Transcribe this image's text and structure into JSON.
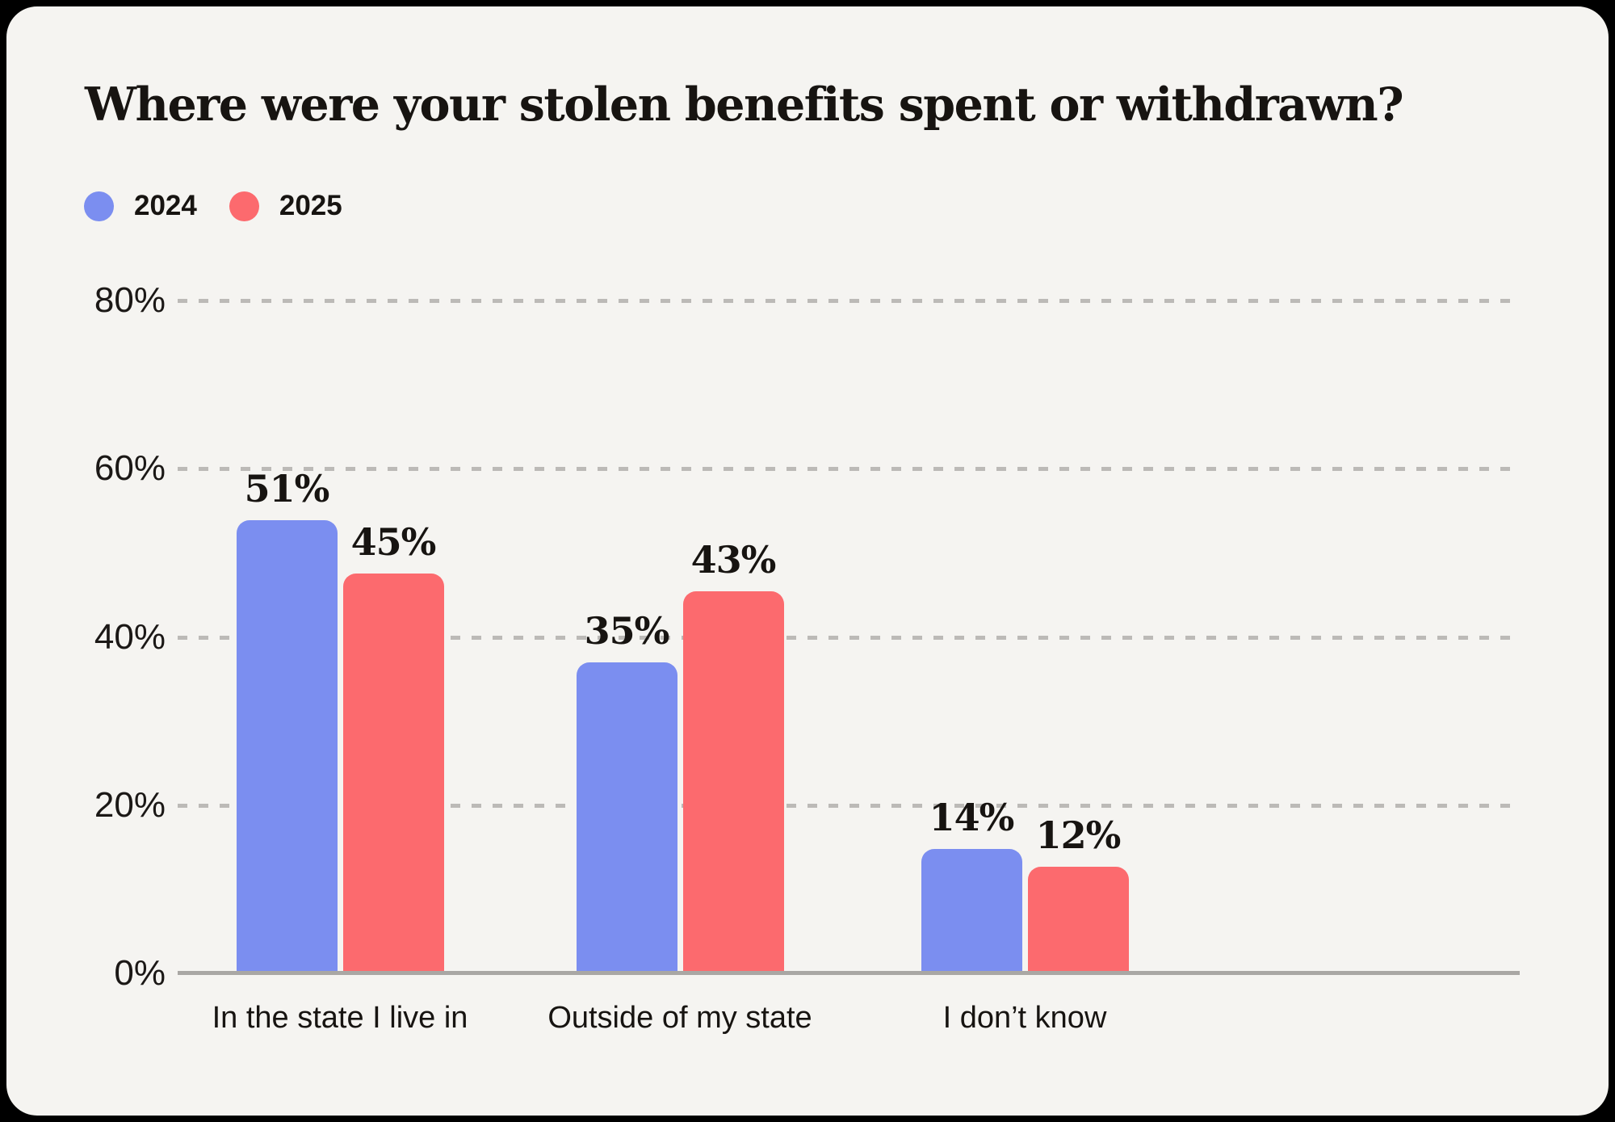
{
  "title": "Where were your stolen benefits spent or withdrawn?",
  "legend": [
    {
      "label": "2024",
      "color": "#7B8EF0"
    },
    {
      "label": "2025",
      "color": "#FC6A6E"
    }
  ],
  "chart_data": {
    "type": "bar",
    "title": "Where were your stolen benefits spent or withdrawn?",
    "categories": [
      "In the state I live in",
      "Outside of my state",
      "I don’t know"
    ],
    "series": [
      {
        "name": "2024",
        "color": "#7B8EF0",
        "values": [
          51,
          35,
          14
        ],
        "value_labels": [
          "51%",
          "35%",
          "14%"
        ]
      },
      {
        "name": "2025",
        "color": "#FC6A6E",
        "values": [
          45,
          43,
          12
        ],
        "value_labels": [
          "45%",
          "43%",
          "12%"
        ]
      }
    ],
    "xlabel": "",
    "ylabel": "",
    "ylim": [
      0,
      80
    ],
    "yticks": [
      0,
      20,
      40,
      60,
      80
    ],
    "ytick_labels": [
      "0%",
      "20%",
      "40%",
      "60%",
      "80%"
    ],
    "grid": "horizontal-dashed",
    "legend_position": "top-left"
  },
  "colors": {
    "page_background": "#000000",
    "card_background": "#F5F4F1",
    "series_2024": "#7B8EF0",
    "series_2025": "#FC6A6E",
    "gridline": "#BCBAB7",
    "axis_line": "#A9A7A4",
    "text": "#171411"
  }
}
